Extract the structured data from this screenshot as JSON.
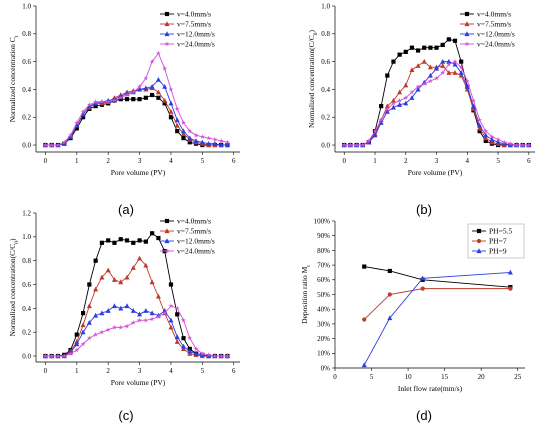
{
  "chart_data": [
    {
      "type": "line",
      "panel_label": "(a)",
      "xlabel": "Pore volume (PV)",
      "ylabel": "Normalized concentration C",
      "ylabel_sub": "t",
      "xlim": [
        -0.3,
        6.2
      ],
      "ylim": [
        -0.05,
        1.0
      ],
      "xticks": [
        0,
        1,
        2,
        3,
        4,
        5,
        6
      ],
      "yticks": [
        0.0,
        0.2,
        0.4,
        0.6,
        0.8,
        1.0
      ],
      "ytick_labels": [
        "0.0",
        "0.2",
        "0.4",
        "0.6",
        "0.8",
        "1.0"
      ],
      "legend_position": "top-right",
      "series": [
        {
          "name": "v=4.0mm/s",
          "color": "#000000",
          "marker": "square",
          "x": [
            0,
            0.2,
            0.4,
            0.6,
            0.8,
            1.0,
            1.2,
            1.4,
            1.6,
            1.8,
            2.0,
            2.2,
            2.4,
            2.6,
            2.8,
            3.0,
            3.2,
            3.4,
            3.6,
            3.8,
            4.0,
            4.2,
            4.4,
            4.6,
            4.8,
            5.0,
            5.2,
            5.4,
            5.6,
            5.8
          ],
          "y": [
            0,
            0,
            0,
            0.01,
            0.05,
            0.12,
            0.2,
            0.26,
            0.28,
            0.29,
            0.3,
            0.32,
            0.33,
            0.33,
            0.33,
            0.33,
            0.34,
            0.36,
            0.34,
            0.3,
            0.2,
            0.1,
            0.05,
            0.02,
            0.01,
            0,
            0,
            0,
            0,
            0
          ]
        },
        {
          "name": "v=7.5mm/s",
          "color": "#c0392b",
          "marker": "triangle",
          "x": [
            0,
            0.2,
            0.4,
            0.6,
            0.8,
            1.0,
            1.2,
            1.4,
            1.6,
            1.8,
            2.0,
            2.2,
            2.4,
            2.6,
            2.8,
            3.0,
            3.2,
            3.4,
            3.6,
            3.8,
            4.0,
            4.2,
            4.4,
            4.6,
            4.8,
            5.0,
            5.2,
            5.4,
            5.6,
            5.8
          ],
          "y": [
            0,
            0,
            0,
            0.01,
            0.06,
            0.14,
            0.22,
            0.27,
            0.3,
            0.3,
            0.31,
            0.34,
            0.36,
            0.38,
            0.39,
            0.4,
            0.4,
            0.41,
            0.38,
            0.32,
            0.24,
            0.14,
            0.08,
            0.04,
            0.02,
            0.01,
            0,
            0,
            0,
            0
          ]
        },
        {
          "name": "v=12.0mm/s",
          "color": "#2b3fe0",
          "marker": "triangle",
          "x": [
            0,
            0.2,
            0.4,
            0.6,
            0.8,
            1.0,
            1.2,
            1.4,
            1.6,
            1.8,
            2.0,
            2.2,
            2.4,
            2.6,
            2.8,
            3.0,
            3.2,
            3.4,
            3.6,
            3.8,
            4.0,
            4.2,
            4.4,
            4.6,
            4.8,
            5.0,
            5.2,
            5.4,
            5.6,
            5.8
          ],
          "y": [
            0,
            0,
            0,
            0.01,
            0.06,
            0.14,
            0.22,
            0.28,
            0.3,
            0.31,
            0.32,
            0.33,
            0.35,
            0.37,
            0.38,
            0.4,
            0.41,
            0.42,
            0.47,
            0.42,
            0.3,
            0.18,
            0.1,
            0.05,
            0.03,
            0.02,
            0.01,
            0.01,
            0,
            0
          ]
        },
        {
          "name": "v=24.0mm/s",
          "color": "#d54fd8",
          "marker": "star",
          "x": [
            0,
            0.2,
            0.4,
            0.6,
            0.8,
            1.0,
            1.2,
            1.4,
            1.6,
            1.8,
            2.0,
            2.2,
            2.4,
            2.6,
            2.8,
            3.0,
            3.2,
            3.4,
            3.6,
            3.8,
            4.0,
            4.2,
            4.4,
            4.6,
            4.8,
            5.0,
            5.2,
            5.4,
            5.6,
            5.8
          ],
          "y": [
            0,
            0,
            0,
            0.02,
            0.07,
            0.16,
            0.24,
            0.29,
            0.31,
            0.31,
            0.31,
            0.32,
            0.34,
            0.36,
            0.38,
            0.42,
            0.48,
            0.6,
            0.66,
            0.55,
            0.4,
            0.26,
            0.16,
            0.1,
            0.07,
            0.06,
            0.05,
            0.04,
            0.03,
            0.02
          ]
        }
      ]
    },
    {
      "type": "line",
      "panel_label": "(b)",
      "xlabel": "Pore volume (PV)",
      "ylabel": "Normalized concentration(C/C",
      "ylabel_sub": "0",
      "ylabel_tail": ")",
      "xlim": [
        -0.3,
        6.2
      ],
      "ylim": [
        -0.05,
        1.0
      ],
      "xticks": [
        0,
        1,
        2,
        3,
        4,
        5,
        6
      ],
      "yticks": [
        0.0,
        0.2,
        0.4,
        0.6,
        0.8,
        1.0
      ],
      "ytick_labels": [
        "0.0",
        "0.2",
        "0.4",
        "0.6",
        "0.8",
        "1.0"
      ],
      "legend_position": "top-right",
      "series": [
        {
          "name": "v=4.0mm/s",
          "color": "#000000",
          "marker": "square",
          "x": [
            0,
            0.2,
            0.4,
            0.6,
            0.8,
            1.0,
            1.2,
            1.4,
            1.6,
            1.8,
            2.0,
            2.2,
            2.4,
            2.6,
            2.8,
            3.0,
            3.2,
            3.4,
            3.6,
            3.8,
            4.0,
            4.2,
            4.4,
            4.6,
            4.8,
            5.0,
            5.2,
            5.4,
            5.6,
            5.8,
            6.0
          ],
          "y": [
            0,
            0,
            0,
            0,
            0.02,
            0.1,
            0.28,
            0.5,
            0.6,
            0.65,
            0.67,
            0.7,
            0.68,
            0.7,
            0.7,
            0.7,
            0.72,
            0.76,
            0.75,
            0.6,
            0.42,
            0.25,
            0.1,
            0.03,
            0.01,
            0,
            0,
            0,
            0,
            0,
            0
          ]
        },
        {
          "name": "v=7.5mm/s",
          "color": "#c0392b",
          "marker": "triangle",
          "x": [
            0,
            0.2,
            0.4,
            0.6,
            0.8,
            1.0,
            1.2,
            1.4,
            1.6,
            1.8,
            2.0,
            2.2,
            2.4,
            2.6,
            2.8,
            3.0,
            3.2,
            3.4,
            3.6,
            3.8,
            4.0,
            4.2,
            4.4,
            4.6,
            4.8,
            5.0,
            5.2,
            5.4,
            5.6,
            5.8,
            6.0
          ],
          "y": [
            0,
            0,
            0,
            0,
            0.02,
            0.08,
            0.18,
            0.28,
            0.32,
            0.38,
            0.43,
            0.54,
            0.57,
            0.6,
            0.56,
            0.56,
            0.57,
            0.52,
            0.52,
            0.5,
            0.4,
            0.26,
            0.12,
            0.05,
            0.02,
            0.01,
            0,
            0,
            0,
            0,
            0
          ]
        },
        {
          "name": "v=12.0mm/s",
          "color": "#2b3fe0",
          "marker": "triangle",
          "x": [
            0,
            0.2,
            0.4,
            0.6,
            0.8,
            1.0,
            1.2,
            1.4,
            1.6,
            1.8,
            2.0,
            2.2,
            2.4,
            2.6,
            2.8,
            3.0,
            3.2,
            3.4,
            3.6,
            3.8,
            4.0,
            4.2,
            4.4,
            4.6,
            4.8,
            5.0,
            5.2,
            5.4,
            5.6,
            5.8,
            6.0
          ],
          "y": [
            0,
            0,
            0,
            0,
            0.02,
            0.07,
            0.16,
            0.24,
            0.27,
            0.29,
            0.3,
            0.34,
            0.4,
            0.45,
            0.5,
            0.55,
            0.6,
            0.6,
            0.58,
            0.52,
            0.42,
            0.28,
            0.14,
            0.07,
            0.04,
            0.02,
            0.01,
            0,
            0,
            0,
            0
          ]
        },
        {
          "name": "v=24.0mm/s",
          "color": "#d54fd8",
          "marker": "star",
          "x": [
            0,
            0.2,
            0.4,
            0.6,
            0.8,
            1.0,
            1.2,
            1.4,
            1.6,
            1.8,
            2.0,
            2.2,
            2.4,
            2.6,
            2.8,
            3.0,
            3.2,
            3.4,
            3.6,
            3.8,
            4.0,
            4.2,
            4.4,
            4.6,
            4.8,
            5.0,
            5.2,
            5.4,
            5.6,
            5.8,
            6.0
          ],
          "y": [
            0,
            0,
            0,
            0,
            0.03,
            0.1,
            0.18,
            0.26,
            0.3,
            0.32,
            0.34,
            0.38,
            0.42,
            0.44,
            0.46,
            0.48,
            0.52,
            0.58,
            0.6,
            0.56,
            0.46,
            0.32,
            0.18,
            0.1,
            0.06,
            0.04,
            0.02,
            0.01,
            0,
            0,
            0
          ]
        }
      ]
    },
    {
      "type": "line",
      "panel_label": "(c)",
      "xlabel": "Pore volume (PV)",
      "ylabel": "Normalized concentration(C/C",
      "ylabel_sub": "0",
      "ylabel_tail": ")",
      "xlim": [
        -0.3,
        6.2
      ],
      "ylim": [
        -0.05,
        1.2
      ],
      "xticks": [
        0,
        1,
        2,
        3,
        4,
        5,
        6
      ],
      "yticks": [
        0.0,
        0.2,
        0.4,
        0.6,
        0.8,
        1.0,
        1.2
      ],
      "ytick_labels": [
        "0.0",
        "0.2",
        "0.4",
        "0.6",
        "0.8",
        "1.0",
        "1.2"
      ],
      "legend_position": "top-right",
      "series": [
        {
          "name": "v=4.0mm/s",
          "color": "#000000",
          "marker": "square",
          "x": [
            0,
            0.2,
            0.4,
            0.6,
            0.8,
            1.0,
            1.2,
            1.4,
            1.6,
            1.8,
            2.0,
            2.2,
            2.4,
            2.6,
            2.8,
            3.0,
            3.2,
            3.4,
            3.6,
            3.8,
            4.0,
            4.2,
            4.4,
            4.6,
            4.8,
            5.0,
            5.2,
            5.4,
            5.6,
            5.8
          ],
          "y": [
            0,
            0,
            0,
            0.01,
            0.05,
            0.18,
            0.36,
            0.6,
            0.8,
            0.95,
            0.97,
            0.95,
            0.98,
            0.97,
            0.95,
            0.97,
            0.96,
            1.03,
            0.99,
            0.88,
            0.6,
            0.35,
            0.15,
            0.06,
            0.02,
            0.01,
            0,
            0,
            0,
            0
          ]
        },
        {
          "name": "v=7.5mm/s",
          "color": "#c0392b",
          "marker": "triangle",
          "x": [
            0,
            0.2,
            0.4,
            0.6,
            0.8,
            1.0,
            1.2,
            1.4,
            1.6,
            1.8,
            2.0,
            2.2,
            2.4,
            2.6,
            2.8,
            3.0,
            3.2,
            3.4,
            3.6,
            3.8,
            4.0,
            4.2,
            4.4,
            4.6,
            4.8,
            5.0,
            5.2,
            5.4,
            5.6,
            5.8
          ],
          "y": [
            0,
            0,
            0,
            0,
            0.04,
            0.12,
            0.26,
            0.42,
            0.56,
            0.66,
            0.72,
            0.64,
            0.62,
            0.66,
            0.74,
            0.82,
            0.76,
            0.62,
            0.5,
            0.36,
            0.24,
            0.12,
            0.06,
            0.02,
            0.01,
            0,
            0,
            0,
            0,
            0
          ]
        },
        {
          "name": "v=12.0mm/s",
          "color": "#2b3fe0",
          "marker": "triangle",
          "x": [
            0,
            0.2,
            0.4,
            0.6,
            0.8,
            1.0,
            1.2,
            1.4,
            1.6,
            1.8,
            2.0,
            2.2,
            2.4,
            2.6,
            2.8,
            3.0,
            3.2,
            3.4,
            3.6,
            3.8,
            4.0,
            4.2,
            4.4,
            4.6,
            4.8,
            5.0,
            5.2,
            5.4,
            5.6,
            5.8
          ],
          "y": [
            0,
            0,
            0,
            0,
            0.03,
            0.1,
            0.2,
            0.28,
            0.34,
            0.36,
            0.38,
            0.42,
            0.4,
            0.42,
            0.38,
            0.35,
            0.38,
            0.36,
            0.34,
            0.38,
            0.3,
            0.16,
            0.08,
            0.04,
            0.02,
            0.01,
            0,
            0,
            0,
            0
          ]
        },
        {
          "name": "v=24.0mm/s",
          "color": "#d54fd8",
          "marker": "star",
          "x": [
            0,
            0.2,
            0.4,
            0.6,
            0.8,
            1.0,
            1.2,
            1.4,
            1.6,
            1.8,
            2.0,
            2.2,
            2.4,
            2.6,
            2.8,
            3.0,
            3.2,
            3.4,
            3.6,
            3.8,
            4.0,
            4.2,
            4.4,
            4.6,
            4.8,
            5.0,
            5.2,
            5.4,
            5.6,
            5.8
          ],
          "y": [
            0,
            0,
            0,
            0,
            0.02,
            0.05,
            0.1,
            0.15,
            0.18,
            0.2,
            0.22,
            0.24,
            0.24,
            0.25,
            0.28,
            0.3,
            0.3,
            0.31,
            0.33,
            0.36,
            0.42,
            0.4,
            0.3,
            0.15,
            0.06,
            0.02,
            0.01,
            0,
            0,
            0
          ]
        }
      ]
    },
    {
      "type": "line",
      "panel_label": "(d)",
      "xlabel": "Inlet flow rate(mm/s)",
      "ylabel": "Deposition ratio M",
      "ylabel_sub": "t",
      "xlim": [
        0,
        26
      ],
      "ylim": [
        0,
        100
      ],
      "xticks": [
        0,
        5,
        10,
        15,
        20,
        25
      ],
      "yticks": [
        0,
        10,
        20,
        30,
        40,
        50,
        60,
        70,
        80,
        90,
        100
      ],
      "ytick_labels": [
        "0%",
        "10%",
        "20%",
        "30%",
        "40%",
        "50%",
        "60%",
        "70%",
        "80%",
        "90%",
        "100%"
      ],
      "legend_position": "top-right",
      "series": [
        {
          "name": "PH=5.5",
          "color": "#000000",
          "marker": "square",
          "x": [
            4,
            7.5,
            12,
            24
          ],
          "y": [
            69,
            66,
            60,
            55
          ]
        },
        {
          "name": "PH=7",
          "color": "#c0392b",
          "marker": "circle",
          "x": [
            4,
            7.5,
            12,
            24
          ],
          "y": [
            33,
            50,
            54,
            54
          ]
        },
        {
          "name": "PH=9",
          "color": "#2b3fe0",
          "marker": "triangle",
          "x": [
            4,
            7.5,
            12,
            24
          ],
          "y": [
            2,
            34,
            61,
            65
          ]
        }
      ]
    }
  ]
}
